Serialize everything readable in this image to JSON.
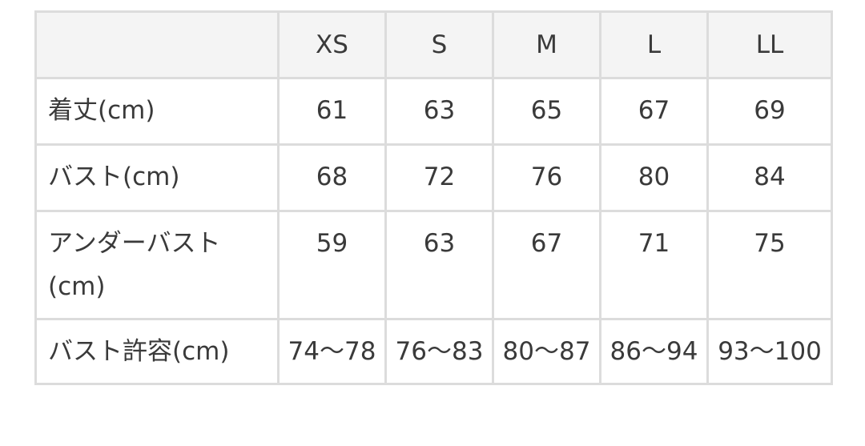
{
  "table": {
    "headers": [
      "",
      "XS",
      "S",
      "M",
      "L",
      "LL"
    ],
    "rows": [
      {
        "label": "着丈(cm)",
        "values": [
          "61",
          "63",
          "65",
          "67",
          "69"
        ]
      },
      {
        "label": "バスト(cm)",
        "values": [
          "68",
          "72",
          "76",
          "80",
          "84"
        ]
      },
      {
        "label": "アンダーバスト(cm)",
        "values": [
          "59",
          "63",
          "67",
          "71",
          "75"
        ]
      },
      {
        "label": "バスト許容(cm)",
        "values": [
          "74〜78",
          "76〜83",
          "80〜87",
          "86〜94",
          "93〜100"
        ]
      }
    ]
  }
}
